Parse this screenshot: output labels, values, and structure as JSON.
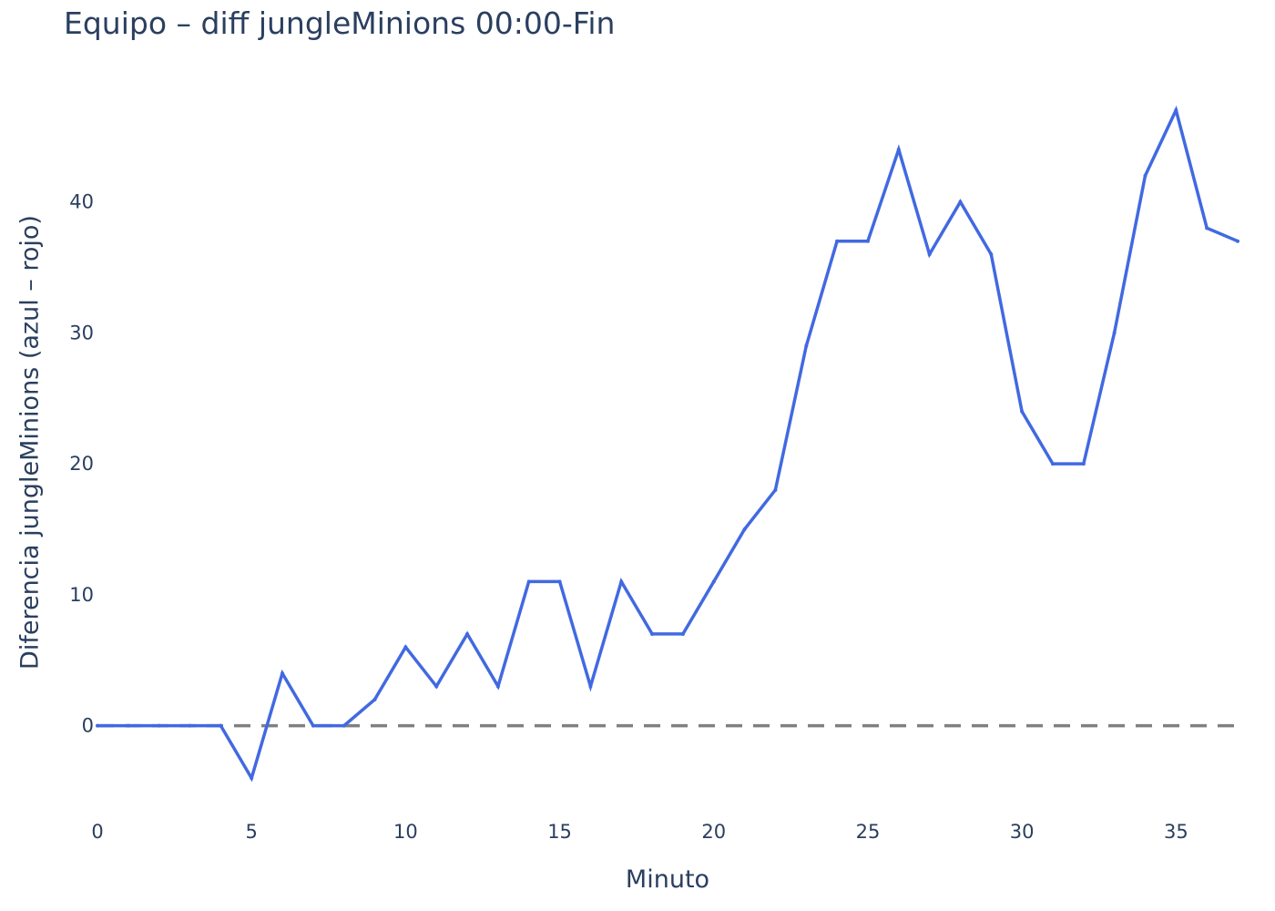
{
  "chart_data": {
    "type": "line",
    "title": "Equipo – diff jungleMinions 00:00-Fin",
    "xlabel": "Minuto",
    "ylabel": "Diferencia jungleMinions (azul – rojo)",
    "xlim": [
      0,
      37
    ],
    "ylim": [
      -6.5,
      49.5
    ],
    "x_ticks": [
      0,
      5,
      10,
      15,
      20,
      25,
      30,
      35
    ],
    "y_ticks": [
      0,
      10,
      20,
      30,
      40
    ],
    "grid": false,
    "legend": "none",
    "reference_line": {
      "y": 0,
      "style": "dashed",
      "color": "#808080"
    },
    "series": [
      {
        "color": "#4169e1",
        "x": [
          0,
          1,
          2,
          3,
          4,
          5,
          6,
          7,
          8,
          9,
          10,
          11,
          12,
          13,
          14,
          15,
          16,
          17,
          18,
          19,
          20,
          21,
          22,
          23,
          24,
          25,
          26,
          27,
          28,
          29,
          30,
          31,
          32,
          33,
          34,
          35,
          36,
          37
        ],
        "y": [
          0,
          0,
          0,
          0,
          0,
          -4,
          4,
          0,
          0,
          2,
          6,
          3,
          7,
          3,
          11,
          11,
          3,
          11,
          7,
          7,
          11,
          15,
          18,
          29,
          37,
          37,
          44,
          36,
          40,
          36,
          24,
          20,
          20,
          30,
          42,
          47,
          38,
          37
        ]
      }
    ]
  }
}
